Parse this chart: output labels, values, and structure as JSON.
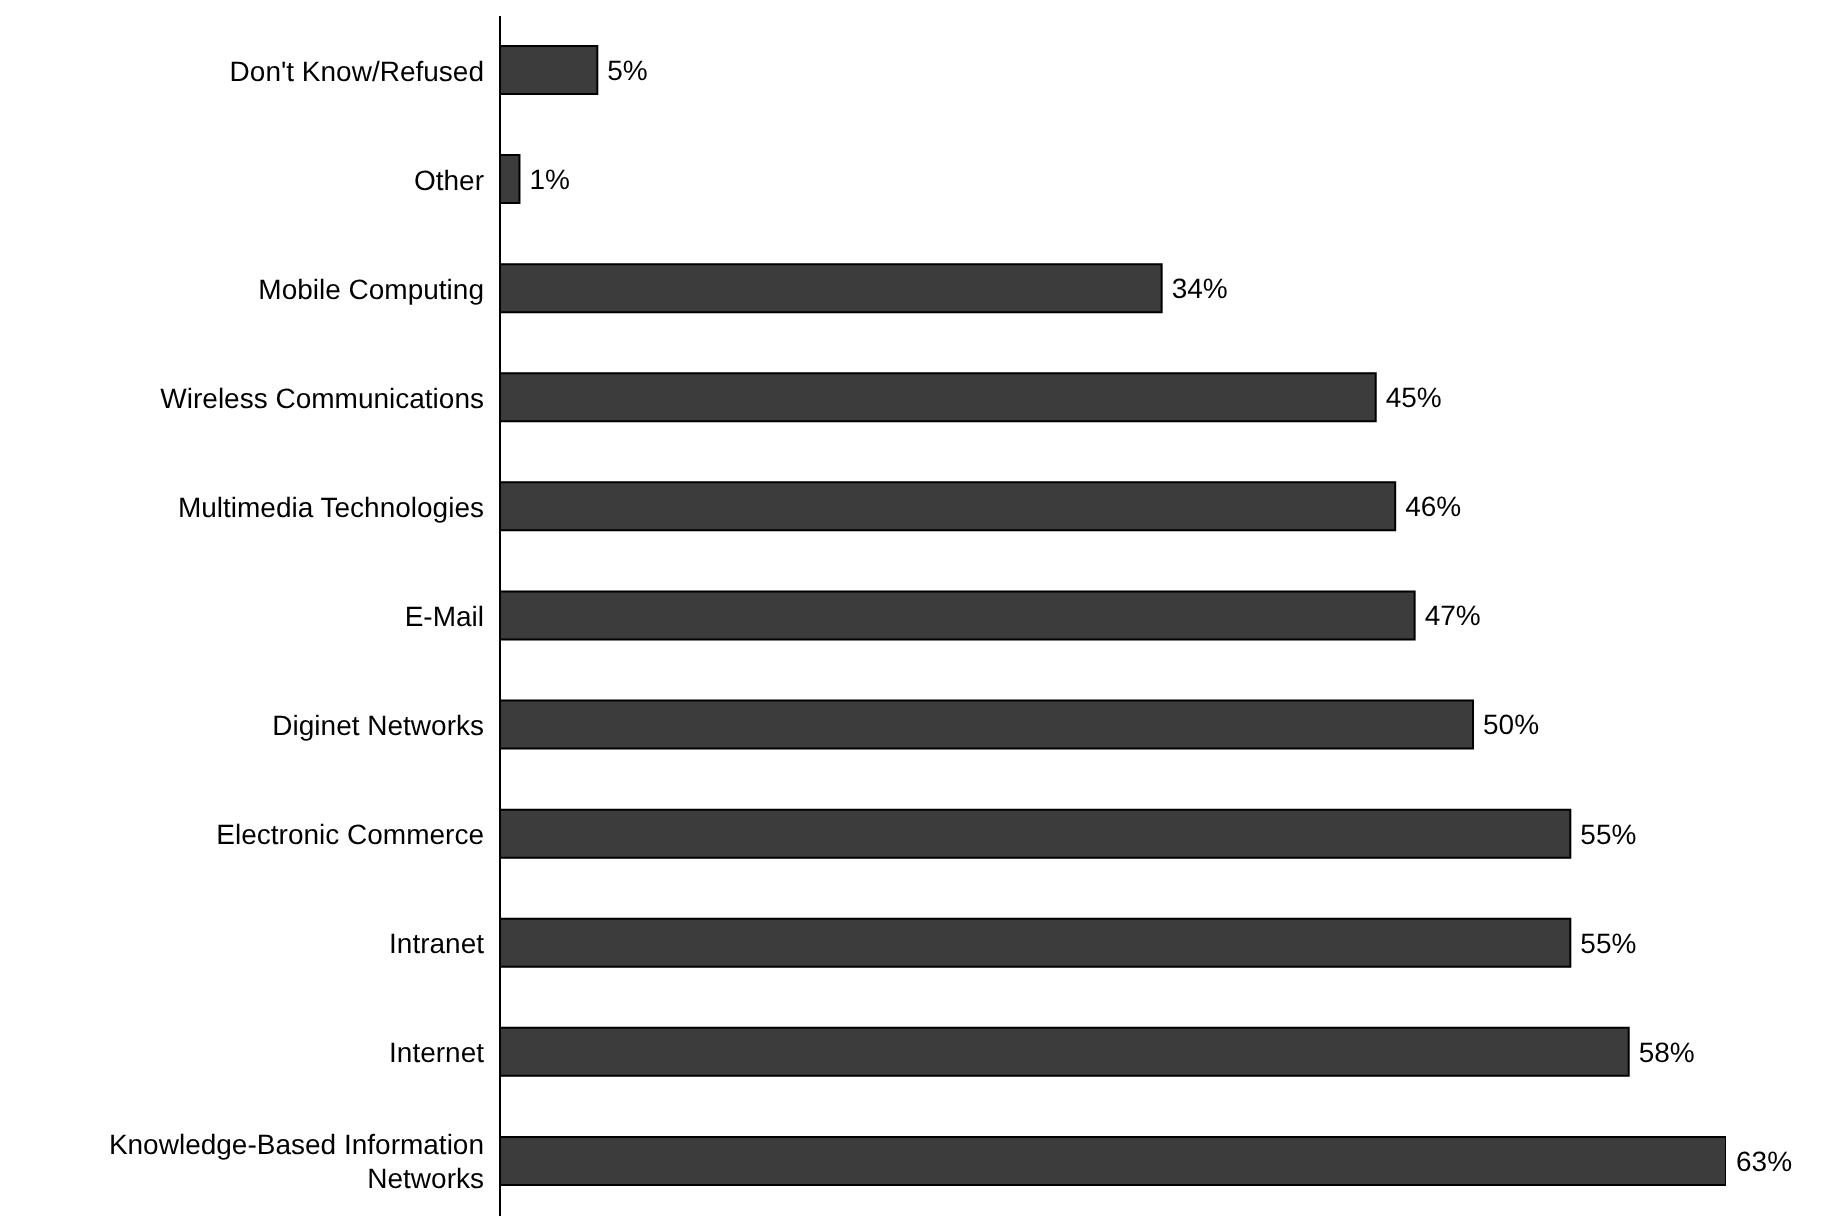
{
  "chart_data": {
    "type": "bar",
    "orientation": "horizontal",
    "grid": false,
    "legend": false,
    "categories": [
      "Don't Know/Refused",
      "Other",
      "Mobile Computing",
      "Wireless Communications",
      "Multimedia Technologies",
      "E-Mail",
      "Diginet Networks",
      "Electronic Commerce",
      "Intranet",
      "Internet",
      "Knowledge-Based Information Networks"
    ],
    "values": [
      5,
      1,
      34,
      45,
      46,
      47,
      50,
      55,
      55,
      58,
      63
    ],
    "value_labels": [
      "5%",
      "1%",
      "34%",
      "45%",
      "46%",
      "47%",
      "50%",
      "55%",
      "55%",
      "58%",
      "63%"
    ],
    "color": "#3c3c3c"
  }
}
